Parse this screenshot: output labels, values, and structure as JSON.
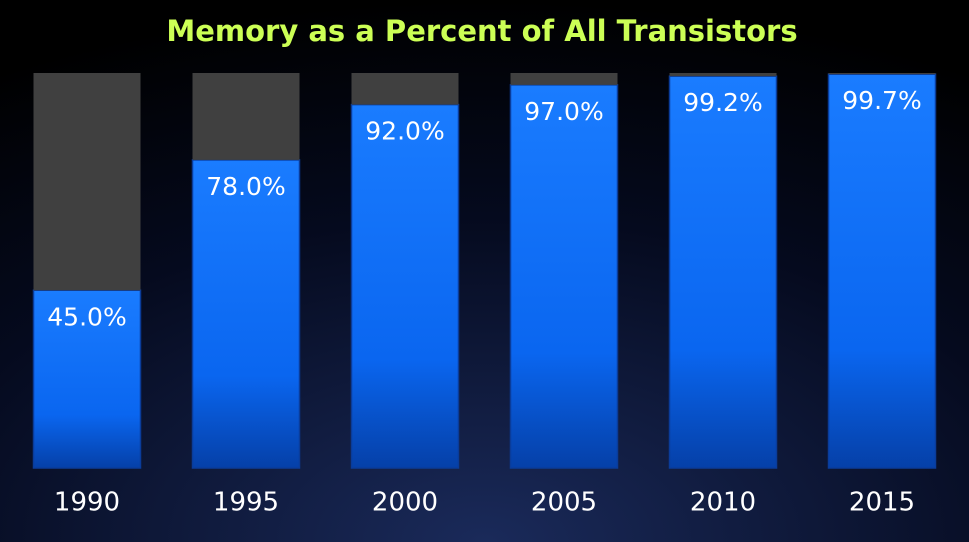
{
  "chart_data": {
    "type": "stacked-bar",
    "title": "Memory as a Percent of All Transistors",
    "categories": [
      "1990",
      "1995",
      "2000",
      "2005",
      "2010",
      "2015"
    ],
    "ylim": [
      0,
      100
    ],
    "series": [
      {
        "color": "#0a6cff",
        "values": [
          45,
          78,
          92,
          97,
          99.2,
          99.7
        ],
        "value_labels": [
          "45.0%",
          "78.0%",
          "92.0%",
          "97.0%",
          "99.2%",
          "99.7%"
        ]
      },
      {
        "color": "#404040",
        "values": [
          55,
          22,
          8,
          3,
          0.8,
          0.3
        ]
      }
    ]
  }
}
